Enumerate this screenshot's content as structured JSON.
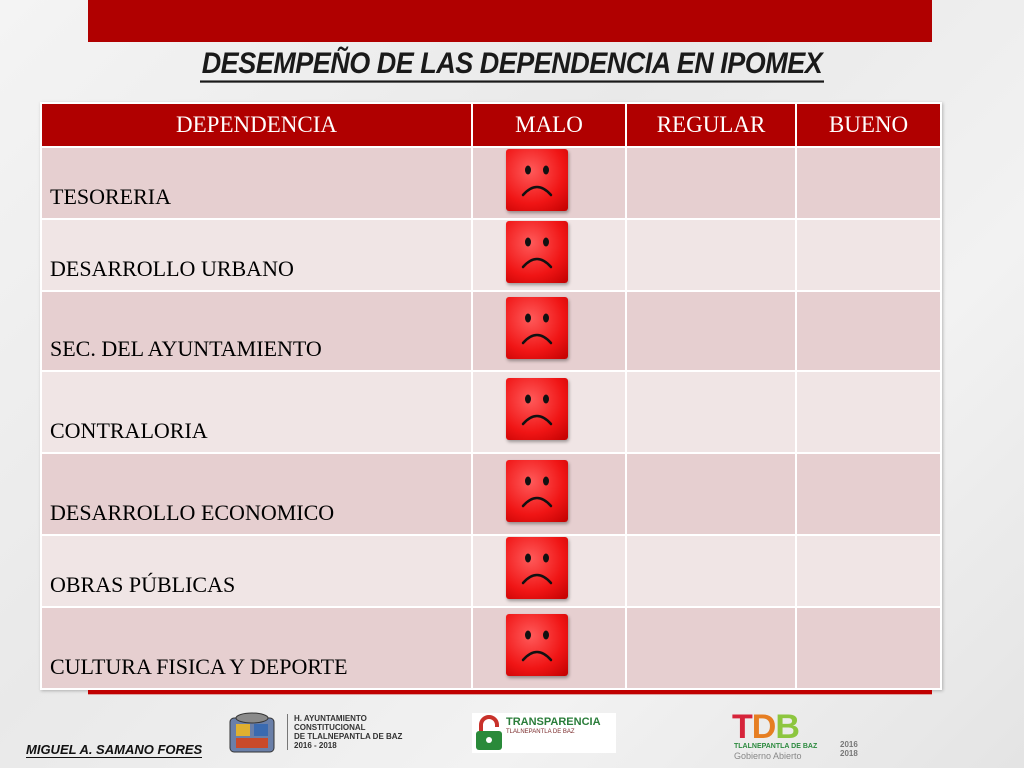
{
  "title": "DESEMPEÑO DE LAS DEPENDENCIA EN IPOMEX",
  "table": {
    "headers": [
      "DEPENDENCIA",
      "MALO",
      "REGULAR",
      "BUENO"
    ],
    "rows": [
      {
        "name": "TESORERIA",
        "rating": "MALO"
      },
      {
        "name": "DESARROLLO URBANO",
        "rating": "MALO"
      },
      {
        "name": "SEC. DEL AYUNTAMIENTO",
        "rating": "MALO"
      },
      {
        "name": "CONTRALORIA",
        "rating": "MALO"
      },
      {
        "name": "DESARROLLO ECONOMICO",
        "rating": "MALO"
      },
      {
        "name": "OBRAS PÚBLICAS",
        "rating": "MALO"
      },
      {
        "name": "CULTURA FISICA Y DEPORTE",
        "rating": "MALO"
      }
    ],
    "rating_icon": "sad-face-icon"
  },
  "footer": {
    "author": "MIGUEL A. SAMANO FORES",
    "ayuntamiento": [
      "H. AYUNTAMIENTO",
      "CONSTITUCIONAL",
      "DE TLALNEPANTLA DE BAZ",
      "2016 - 2018"
    ],
    "transparencia_title": "TRANSPARENCIA",
    "transparencia_sub": "TLALNEPANTLA DE BAZ",
    "tdb_letters": "TDB",
    "tdb_sub": "TLALNEPANTLA DE BAZ",
    "tdb_sub2": "Gobierno Abierto",
    "tdb_years": [
      "2016",
      "2018"
    ]
  },
  "colors": {
    "accent": "#b00000",
    "row_dark": "#e6cfd0",
    "row_light": "#f0e5e5",
    "face": "#f01515"
  }
}
